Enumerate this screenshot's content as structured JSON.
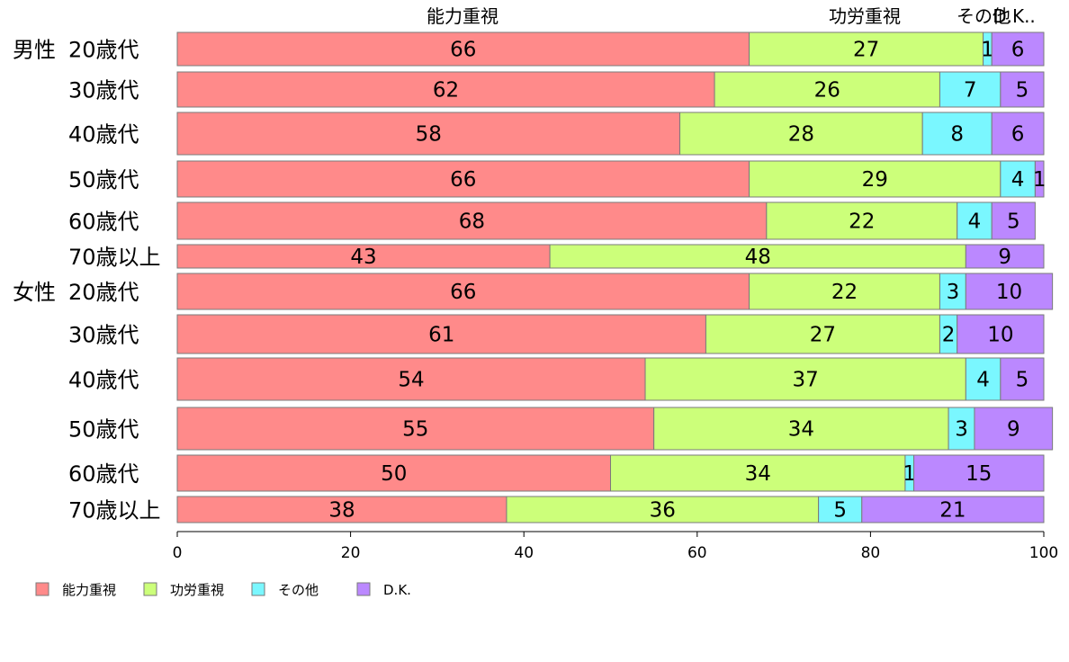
{
  "chart_data": {
    "type": "bar",
    "orientation": "horizontal",
    "stacked": true,
    "xlim": [
      0,
      100
    ],
    "xticks": [
      "0",
      "20",
      "40",
      "60",
      "80",
      "100"
    ],
    "series": [
      {
        "name": "能力重視",
        "color": "#ff8a8a",
        "values": [
          66,
          62,
          58,
          66,
          68,
          43,
          66,
          61,
          54,
          55,
          50,
          38
        ]
      },
      {
        "name": "功労重視",
        "color": "#ccff7a",
        "values": [
          27,
          26,
          28,
          29,
          22,
          48,
          22,
          27,
          37,
          34,
          34,
          36
        ]
      },
      {
        "name": "その他",
        "color": "#7af7ff",
        "values": [
          1,
          7,
          8,
          4,
          4,
          0,
          3,
          2,
          4,
          3,
          1,
          5
        ]
      },
      {
        "name": "D.K.",
        "color": "#bb88ff",
        "values": [
          6,
          5,
          6,
          1,
          5,
          9,
          10,
          10,
          5,
          9,
          15,
          21
        ]
      }
    ],
    "top_labels": [
      "能力重視",
      "功労重視",
      "その他",
      "D.K.."
    ],
    "groups": [
      {
        "label": "男性",
        "rows": [
          "20歳代",
          "30歳代",
          "40歳代",
          "50歳代",
          "60歳代",
          "70歳以上"
        ]
      },
      {
        "label": "女性",
        "rows": [
          "20歳代",
          "30歳代",
          "40歳代",
          "50歳代",
          "60歳代",
          "70歳以上"
        ]
      }
    ],
    "legend": {
      "position": "bottom-left"
    }
  }
}
